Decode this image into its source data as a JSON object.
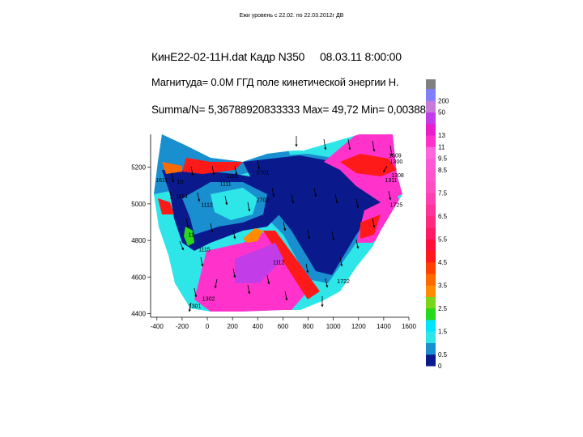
{
  "slide_title": "Ежи уровень с 22.02. по 22.03.2012г ДВ",
  "header": {
    "file_frame": "КинЕ22-02-11Н.dat Кадр N350",
    "datetime": "08.03.11 8:00:00",
    "magnitude": "Магнитуда= 0.0М",
    "field_name": "ГГД поле кинетической энергии Н.",
    "stats": "Summa/N= 5,36788920833333 Max= 49,72 Min= 0,003887"
  },
  "chart_data": {
    "type": "heatmap",
    "title": "",
    "xlabel": "",
    "ylabel": "",
    "xlim": [
      -450,
      1600
    ],
    "ylim": [
      4380,
      5380
    ],
    "x_ticks": [
      -400,
      -200,
      0,
      200,
      400,
      600,
      800,
      1000,
      1200,
      1400,
      1600
    ],
    "y_ticks": [
      4400,
      4600,
      4800,
      5000,
      5200
    ],
    "y_tick_labels": [
      "4400",
      "4600",
      "4800",
      "5000",
      "5200"
    ],
    "legend": {
      "placement": "right",
      "levels": [
        "0",
        "0.5",
        "1",
        "1.5",
        "2",
        "2.5",
        "3",
        "3.5",
        "4",
        "4.5",
        "5",
        "5.5",
        "6",
        "6.5",
        "7",
        "7.5",
        "8",
        "8.5",
        "9.5",
        "11",
        "13",
        "20",
        "50",
        "200"
      ],
      "label_levels": [
        "0",
        "0.5",
        "1.5",
        "2.5",
        "3.5",
        "4.5",
        "5.5",
        "6.5",
        "7.5",
        "8.5",
        "9.5",
        "11",
        "13",
        "50",
        "200"
      ],
      "colors": [
        "#0a1a8c",
        "#1a8fd0",
        "#2ee6e8",
        "#00e5ff",
        "#27d91a",
        "#7ad61a",
        "#ff8c00",
        "#ff6a00",
        "#ff4000",
        "#ff1a1a",
        "#ff0f3c",
        "#ff1a66",
        "#ff2a80",
        "#ff3399",
        "#ff40b0",
        "#ff4dc4",
        "#ff55cc",
        "#ff5ad6",
        "#ff66dd",
        "#ff33cc",
        "#e81ecc",
        "#c23de8",
        "#c87ad8",
        "#8080ff"
      ],
      "top_cap_color": "#808080"
    },
    "station_labels": [
      {
        "label": "1309",
        "x": 1440,
        "y": 5255
      },
      {
        "label": "1300",
        "x": 1450,
        "y": 5220
      },
      {
        "label": "1308",
        "x": 1460,
        "y": 5145
      },
      {
        "label": "1311",
        "x": 1410,
        "y": 5120
      },
      {
        "label": "1725",
        "x": 1450,
        "y": 4985
      },
      {
        "label": "2701",
        "x": 390,
        "y": 5160
      },
      {
        "label": "1113",
        "x": 150,
        "y": 5140
      },
      {
        "label": "1611",
        "x": -410,
        "y": 5120
      },
      {
        "label": "16",
        "x": -240,
        "y": 5110
      },
      {
        "label": "1111",
        "x": 100,
        "y": 5100
      },
      {
        "label": "1114",
        "x": -250,
        "y": 5030
      },
      {
        "label": "2702",
        "x": 390,
        "y": 5010
      },
      {
        "label": "1112",
        "x": -50,
        "y": 4985
      },
      {
        "label": "11",
        "x": -150,
        "y": 4820
      },
      {
        "label": "1115",
        "x": -70,
        "y": 4740
      },
      {
        "label": "1112",
        "x": 520,
        "y": 4670
      },
      {
        "label": "1722",
        "x": 1030,
        "y": 4565
      },
      {
        "label": "1302",
        "x": -40,
        "y": 4470
      },
      {
        "label": "1301",
        "x": -150,
        "y": 4430
      }
    ]
  },
  "colors": {
    "deep_blue": "#0a1a8c",
    "steel_blue": "#1a8fd0",
    "cyan": "#2ee6e8",
    "red": "#ff1a1a",
    "magenta": "#ff33cc",
    "purple": "#c23de8"
  }
}
